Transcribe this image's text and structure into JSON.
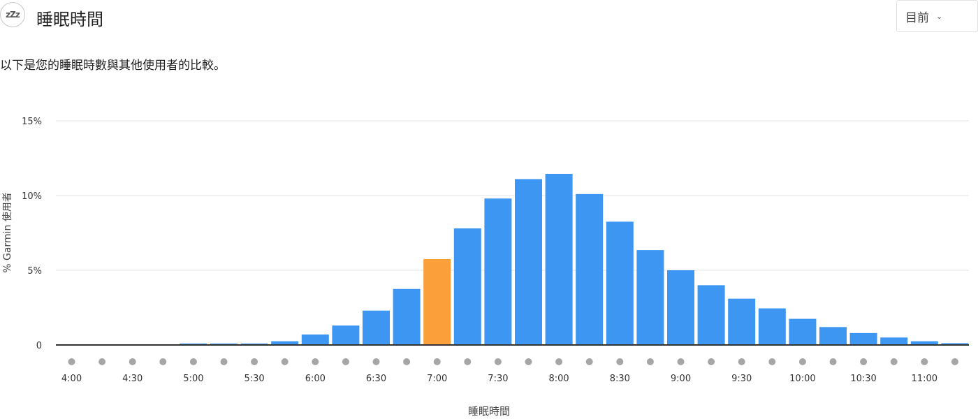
{
  "header": {
    "icon": "sleep-zzz-icon",
    "icon_text": "zZz",
    "title": "睡眠時間",
    "period_select": {
      "selected": "目前"
    }
  },
  "description": "以下是您的睡眠時數與其他使用者的比較。",
  "colors": {
    "bar": "#3d96f2",
    "highlight": "#fb9f3a",
    "grid": "#e6e6e6",
    "axis": "#333333",
    "dot": "#a6a6a6"
  },
  "chart_data": {
    "type": "bar",
    "xlabel": "睡眠時間",
    "ylabel": "% Garmin 使用者",
    "y_ticks": [
      "0",
      "5%",
      "10%",
      "15%"
    ],
    "ylim": [
      0,
      15
    ],
    "x_tick_labels": [
      "4:00",
      "4:30",
      "5:00",
      "5:30",
      "6:00",
      "6:30",
      "7:00",
      "7:30",
      "8:00",
      "8:30",
      "9:00",
      "9:30",
      "10:00",
      "10:30",
      "11:00"
    ],
    "categories": [
      "4:00",
      "4:15",
      "4:30",
      "4:45",
      "5:00",
      "5:15",
      "5:30",
      "5:45",
      "6:00",
      "6:15",
      "6:30",
      "6:45",
      "7:00",
      "7:15",
      "7:30",
      "7:45",
      "8:00",
      "8:15",
      "8:30",
      "8:45",
      "9:00",
      "9:15",
      "9:30",
      "9:45",
      "10:00",
      "10:15",
      "10:30",
      "10:45",
      "11:00",
      "11:15"
    ],
    "values": [
      0,
      0,
      0,
      0,
      0.1,
      0.1,
      0.1,
      0.25,
      0.7,
      1.3,
      2.3,
      3.75,
      5.75,
      7.8,
      9.8,
      11.1,
      11.45,
      10.1,
      8.25,
      6.35,
      5.0,
      4.0,
      3.1,
      2.45,
      1.75,
      1.2,
      0.8,
      0.5,
      0.25,
      0.12
    ],
    "highlight_category": "7:00",
    "grid": true,
    "legend": "none"
  }
}
